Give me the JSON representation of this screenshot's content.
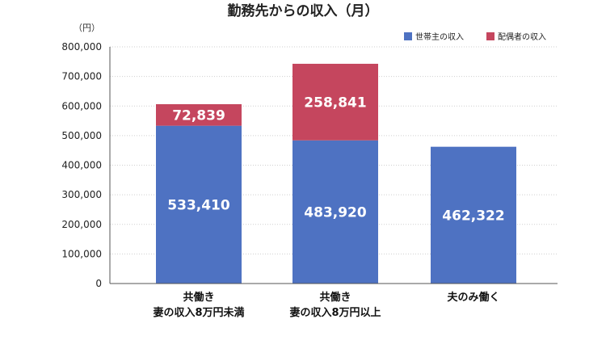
{
  "chart_data": {
    "type": "bar",
    "stacked": true,
    "title": "勤務先からの収入（月）",
    "ylabel": "（円）",
    "ylim": [
      0,
      800000
    ],
    "yticks": [
      "0",
      "100,000",
      "200,000",
      "300,000",
      "400,000",
      "500,000",
      "600,000",
      "700,000",
      "800,000"
    ],
    "grid": true,
    "legend_position": "top-right",
    "categories": [
      [
        "共働き",
        "妻の収入8万円未満"
      ],
      [
        "共働き",
        "妻の収入8万円以上"
      ],
      [
        "夫のみ働く"
      ]
    ],
    "series": [
      {
        "name": "世帯主の収入",
        "color": "#4e72c2",
        "values": [
          533410,
          483920,
          462322
        ],
        "labels": [
          "533,410",
          "483,920",
          "462,322"
        ]
      },
      {
        "name": "配偶者の収入",
        "color": "#c5465e",
        "values": [
          72839,
          258841,
          null
        ],
        "labels": [
          "72,839",
          "258,841",
          ""
        ]
      }
    ]
  }
}
